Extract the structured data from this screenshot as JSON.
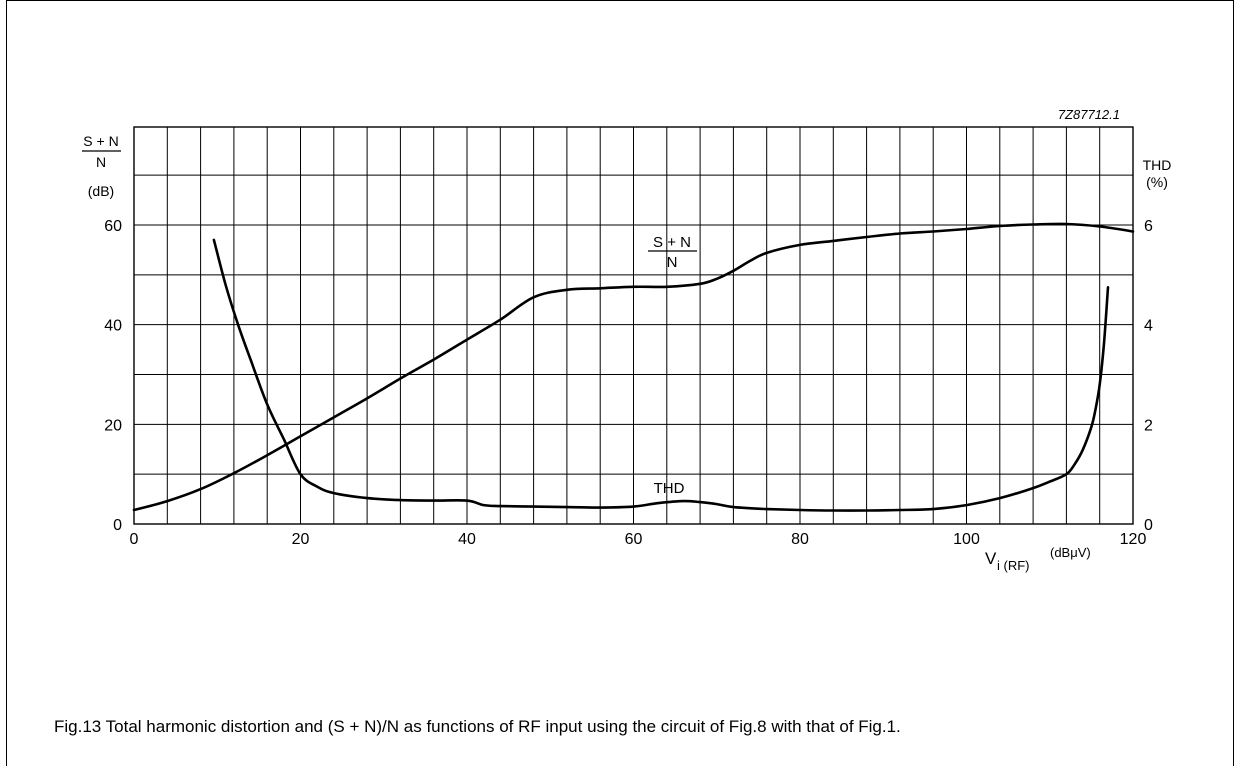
{
  "figure_id": "7Z87712.1",
  "caption": "Fig.13  Total harmonic distortion and (S + N)/N as functions of RF input using the circuit of Fig.8 with that of Fig.1.",
  "chart_data": {
    "type": "line",
    "x_axis": {
      "label_main": "V",
      "label_sub": "i (RF)",
      "label_unit": "(dBμV)",
      "range": [
        0,
        120
      ],
      "ticks": [
        0,
        20,
        40,
        60,
        80,
        100,
        120
      ],
      "minor_step": 4
    },
    "y_left": {
      "label_num": "S + N",
      "label_den": "N",
      "unit": "(dB)",
      "range": [
        0,
        60
      ],
      "ticks": [
        0,
        20,
        40,
        60
      ]
    },
    "y_right": {
      "label": "THD",
      "unit": "(%)",
      "range": [
        0,
        6
      ],
      "ticks": [
        0,
        2,
        4,
        6
      ]
    },
    "grid": true,
    "series": [
      {
        "name": "S + N / N",
        "axis": "left",
        "label_num": "S + N",
        "label_den": "N",
        "x": [
          0,
          4,
          8,
          12,
          16,
          20,
          24,
          28,
          32,
          36,
          40,
          44,
          48,
          52,
          56,
          60,
          64,
          68,
          70,
          72,
          74,
          76,
          80,
          84,
          88,
          92,
          96,
          100,
          104,
          108,
          112,
          116,
          120
        ],
        "y": [
          2.8,
          4.6,
          7.0,
          10.2,
          13.8,
          17.6,
          21.4,
          25.2,
          29.2,
          33.0,
          37.0,
          41.0,
          45.5,
          47.0,
          47.3,
          47.6,
          47.6,
          48.2,
          49.2,
          50.8,
          52.8,
          54.4,
          56.0,
          56.8,
          57.6,
          58.3,
          58.7,
          59.2,
          59.8,
          60.1,
          60.2,
          59.7,
          58.7
        ]
      },
      {
        "name": "THD",
        "axis": "right",
        "label": "THD",
        "x": [
          9.6,
          11,
          12.5,
          14,
          16,
          18,
          20,
          22,
          24,
          28,
          32,
          36,
          40,
          42,
          44,
          48,
          52,
          56,
          60,
          63,
          66,
          68,
          70,
          72,
          76,
          80,
          84,
          88,
          92,
          96,
          100,
          104,
          108,
          110,
          112,
          113,
          114,
          115,
          115.5,
          116,
          116.5,
          117
        ],
        "y": [
          5.7,
          4.8,
          4.0,
          3.3,
          2.4,
          1.7,
          1.0,
          0.75,
          0.62,
          0.52,
          0.48,
          0.47,
          0.47,
          0.38,
          0.36,
          0.35,
          0.34,
          0.33,
          0.35,
          0.42,
          0.46,
          0.44,
          0.4,
          0.34,
          0.3,
          0.28,
          0.27,
          0.27,
          0.28,
          0.3,
          0.38,
          0.52,
          0.72,
          0.85,
          1.0,
          1.2,
          1.5,
          1.95,
          2.3,
          2.8,
          3.6,
          4.75
        ]
      }
    ]
  }
}
